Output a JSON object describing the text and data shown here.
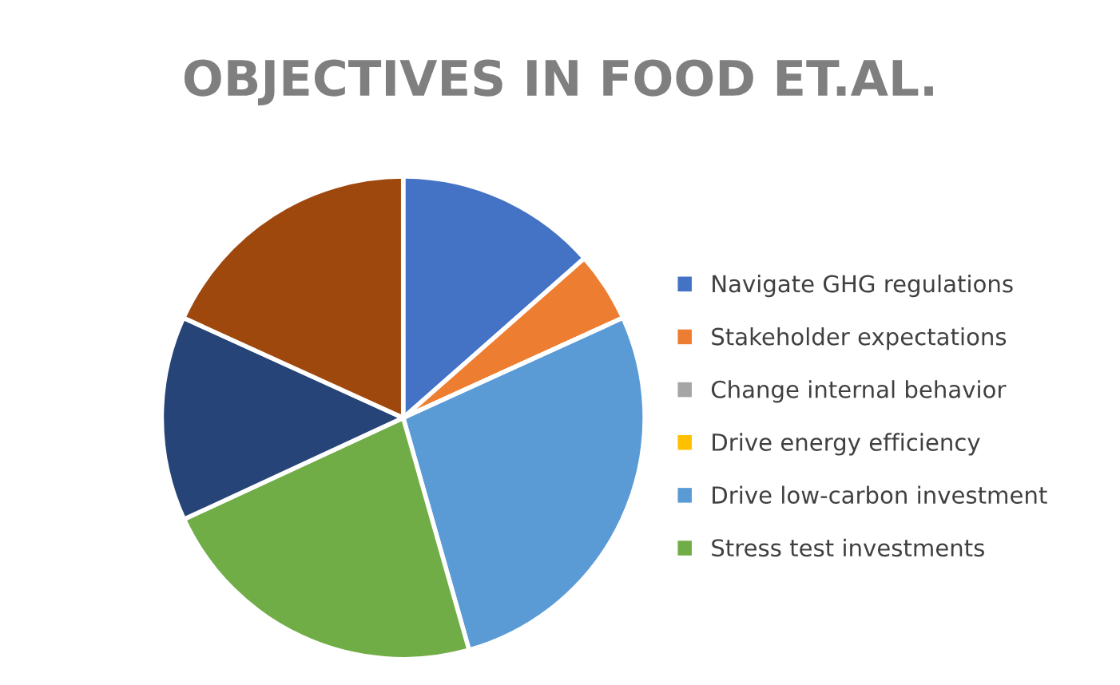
{
  "chart_data": {
    "type": "pie",
    "title": "OBJECTIVES IN FOOD ET.AL.",
    "categories": [
      "Navigate GHG regulations",
      "Stakeholder expectations",
      "Change internal behavior",
      "Drive energy efficiency",
      "Drive low-carbon investment",
      "Stress test investments",
      null,
      null
    ],
    "values": [
      13.5,
      4.7,
      0,
      0,
      27.4,
      22.5,
      13.7,
      18.2
    ],
    "colors": [
      "#4472c4",
      "#ed7d31",
      "#a5a5a5",
      "#ffc000",
      "#5b9bd5",
      "#70ad47",
      "#264478",
      "#9e480e"
    ],
    "legend": "right"
  }
}
